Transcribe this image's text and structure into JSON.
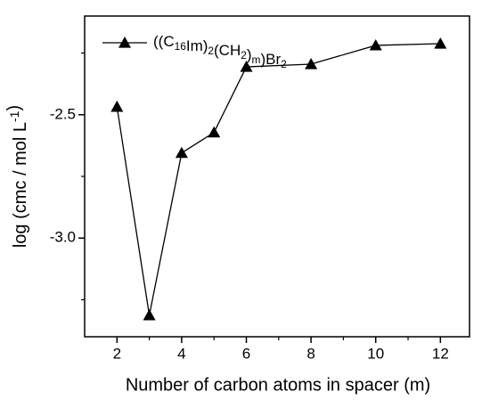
{
  "chart_data": {
    "type": "line",
    "x_label": "Number of carbon atoms in spacer (m)",
    "y_label": "log (cmc / mol L-1)",
    "x": [
      2,
      3,
      4,
      5,
      6,
      8,
      10,
      12
    ],
    "series": [
      {
        "name": "((C16Im)2(CH2)m)Br2",
        "color": "#000000",
        "values": [
          -2.468,
          -3.313,
          -2.655,
          -2.572,
          -2.306,
          -2.295,
          -2.219,
          -2.212
        ]
      }
    ],
    "xlim": [
      1,
      12.9
    ],
    "ylim": [
      -3.4,
      -2.1
    ],
    "xticks": [
      2,
      4,
      6,
      8,
      10,
      12
    ],
    "xminor": [
      3,
      5,
      7,
      9,
      11
    ],
    "yticks": [
      -2.5,
      {
        "value": -3,
        "label": "-3.0"
      }
    ],
    "yminor": [
      -2.25,
      -2.75,
      -3.25
    ],
    "legend": "upper-left",
    "marker": "triangle"
  }
}
